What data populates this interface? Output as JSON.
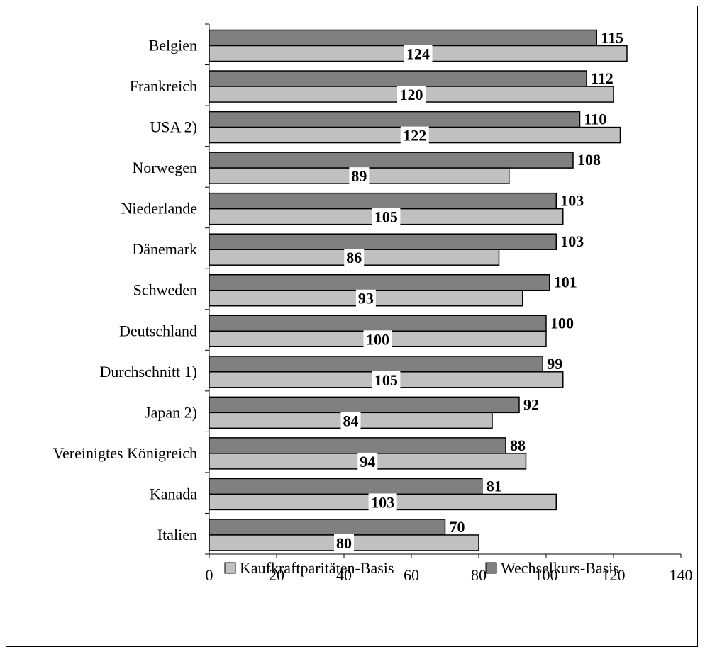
{
  "chart_data": {
    "type": "bar",
    "orientation": "horizontal",
    "title": "",
    "xlabel": "",
    "ylabel": "",
    "xlim": [
      0,
      140
    ],
    "xticks": [
      "0",
      "20",
      "40",
      "60",
      "80",
      "100",
      "120",
      "140"
    ],
    "grid": false,
    "legend_position": "bottom",
    "categories": [
      "Belgien",
      "Frankreich",
      "USA 2)",
      "Norwegen",
      "Niederlande",
      "Dänemark",
      "Schweden",
      "Deutschland",
      "Durchschnitt 1)",
      "Japan 2)",
      "Vereinigtes Königreich",
      "Kanada",
      "Italien"
    ],
    "series": [
      {
        "name": "Wechselkurs-Basis",
        "color": "#808080",
        "values": [
          115,
          112,
          110,
          108,
          103,
          103,
          101,
          100,
          99,
          92,
          88,
          81,
          70
        ]
      },
      {
        "name": "Kaufkraftparitäten-Basis",
        "color": "#c0c0c0",
        "values": [
          124,
          120,
          122,
          89,
          105,
          86,
          93,
          100,
          105,
          84,
          94,
          103,
          80
        ]
      }
    ],
    "legend": [
      "Kaufkraftparitäten-Basis",
      "Wechselkurs-Basis"
    ]
  }
}
